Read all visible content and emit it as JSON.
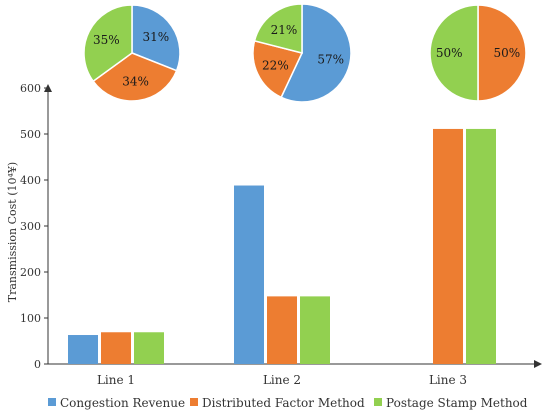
{
  "chart_data": {
    "type": "bar",
    "categories": [
      "Line 1",
      "Line 2",
      "Line 3"
    ],
    "series": [
      {
        "name": "Congestion Revenue",
        "color": "#5b9bd5",
        "values": [
          63,
          388,
          0
        ]
      },
      {
        "name": "Distributed Factor Method",
        "color": "#ed7d31",
        "values": [
          69,
          147,
          511
        ]
      },
      {
        "name": "Postage Stamp Method",
        "color": "#92d050",
        "values": [
          69,
          147,
          511
        ]
      }
    ],
    "ylabel": "Transmission Cost (10⁴¥)",
    "ylim": [
      0,
      600
    ],
    "yticks": [
      0,
      100,
      200,
      300,
      400,
      500,
      600
    ],
    "legend_position": "bottom",
    "grid": false,
    "pies": [
      {
        "category": "Line 1",
        "values": [
          31,
          34,
          35
        ],
        "labels": [
          "31%",
          "34%",
          "35%"
        ]
      },
      {
        "category": "Line 2",
        "values": [
          57,
          22,
          21
        ],
        "labels": [
          "57%",
          "22%",
          "21%"
        ]
      },
      {
        "category": "Line 3",
        "values": [
          0,
          50,
          50
        ],
        "labels": [
          "",
          "50%",
          "50%"
        ]
      }
    ]
  }
}
